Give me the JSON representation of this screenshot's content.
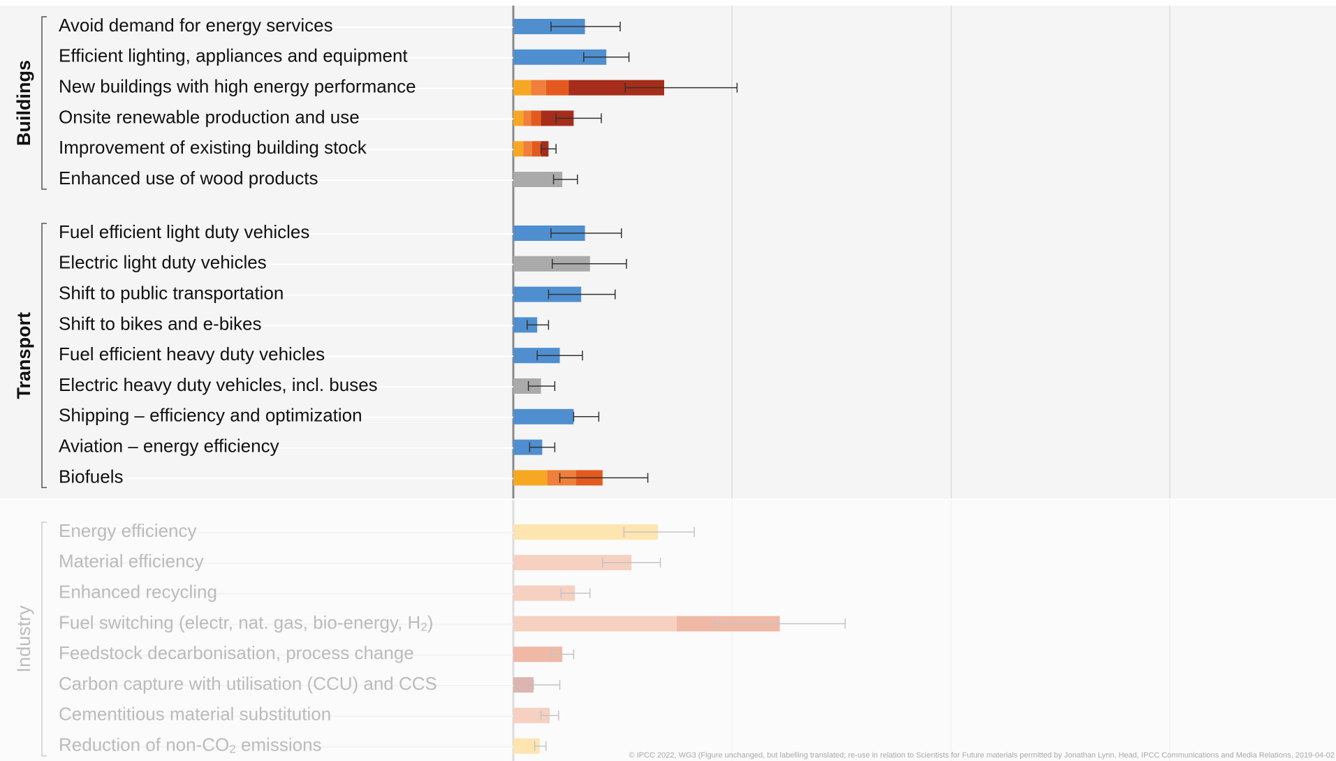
{
  "chart_data": {
    "type": "bar",
    "orientation": "horizontal",
    "stacked": true,
    "error_bars": true,
    "xlim": [
      0,
      7.5
    ],
    "colors": {
      "blue": "#4f8fcf",
      "gray": "#aaaaaa",
      "orange1": "#f7a823",
      "orange2": "#ef7f3a",
      "orange3": "#e45a1e",
      "red": "#a52d1a",
      "industry_yellow": "#fde5b0",
      "industry_pink": "#f6d0c0",
      "industry_pink2": "#efb9a6",
      "industry_mauve": "#dcb4b0",
      "frame": "#888888",
      "grid": "#dddddd"
    },
    "groups": [
      {
        "name": "Buildings",
        "faded": false,
        "items": [
          {
            "label": "Avoid demand for energy services",
            "segments": [
              {
                "value": 0.57,
                "color": "blue"
              }
            ],
            "err": [
              0.3,
              0.85
            ]
          },
          {
            "label": "Efficient lighting, appliances and equipment",
            "segments": [
              {
                "value": 0.74,
                "color": "blue"
              }
            ],
            "err": [
              0.56,
              0.92
            ]
          },
          {
            "label": "New buildings with high energy performance",
            "segments": [
              {
                "value": 0.14,
                "color": "orange1"
              },
              {
                "value": 0.12,
                "color": "orange2"
              },
              {
                "value": 0.18,
                "color": "orange3"
              },
              {
                "value": 0.76,
                "color": "red"
              }
            ],
            "err": [
              0.89,
              1.78
            ]
          },
          {
            "label": "Onsite renewable production and use",
            "segments": [
              {
                "value": 0.08,
                "color": "orange1"
              },
              {
                "value": 0.06,
                "color": "orange2"
              },
              {
                "value": 0.08,
                "color": "orange3"
              },
              {
                "value": 0.26,
                "color": "red"
              }
            ],
            "err": [
              0.34,
              0.7
            ]
          },
          {
            "label": "Improvement of existing building stock",
            "segments": [
              {
                "value": 0.08,
                "color": "orange1"
              },
              {
                "value": 0.07,
                "color": "orange2"
              },
              {
                "value": 0.07,
                "color": "orange3"
              },
              {
                "value": 0.06,
                "color": "red"
              }
            ],
            "err": [
              0.22,
              0.34
            ]
          },
          {
            "label": "Enhanced use of wood products",
            "segments": [
              {
                "value": 0.39,
                "color": "gray"
              }
            ],
            "err": [
              0.32,
              0.51
            ]
          }
        ]
      },
      {
        "name": "Transport",
        "faded": false,
        "items": [
          {
            "label": "Fuel efficient light duty vehicles",
            "segments": [
              {
                "value": 0.57,
                "color": "blue"
              }
            ],
            "err": [
              0.3,
              0.86
            ]
          },
          {
            "label": "Electric light duty vehicles",
            "segments": [
              {
                "value": 0.61,
                "color": "gray"
              }
            ],
            "err": [
              0.31,
              0.9
            ]
          },
          {
            "label": "Shift to public transportation",
            "segments": [
              {
                "value": 0.54,
                "color": "blue"
              }
            ],
            "err": [
              0.28,
              0.81
            ]
          },
          {
            "label": "Shift to bikes and e-bikes",
            "segments": [
              {
                "value": 0.19,
                "color": "blue"
              }
            ],
            "err": [
              0.11,
              0.28
            ]
          },
          {
            "label": "Fuel efficient heavy duty vehicles",
            "segments": [
              {
                "value": 0.37,
                "color": "blue"
              }
            ],
            "err": [
              0.19,
              0.55
            ]
          },
          {
            "label": "Electric heavy duty vehicles, incl. buses",
            "segments": [
              {
                "value": 0.22,
                "color": "gray"
              }
            ],
            "err": [
              0.12,
              0.33
            ]
          },
          {
            "label": "Shipping – efficiency and optimization",
            "segments": [
              {
                "value": 0.48,
                "color": "blue"
              }
            ],
            "err": [
              0.48,
              0.68
            ]
          },
          {
            "label": "Aviation – energy efficiency",
            "segments": [
              {
                "value": 0.23,
                "color": "blue"
              }
            ],
            "err": [
              0.13,
              0.33
            ]
          },
          {
            "label": "Biofuels",
            "segments": [
              {
                "value": 0.27,
                "color": "orange1"
              },
              {
                "value": 0.23,
                "color": "orange2"
              },
              {
                "value": 0.21,
                "color": "orange3"
              }
            ],
            "err": [
              0.37,
              1.07
            ]
          }
        ]
      },
      {
        "name": "Industry",
        "faded": true,
        "items": [
          {
            "label": "Energy efficiency",
            "segments": [
              {
                "value": 1.15,
                "color": "industry_yellow"
              }
            ],
            "err": [
              0.88,
              1.44
            ]
          },
          {
            "label": "Material efficiency",
            "segments": [
              {
                "value": 0.94,
                "color": "industry_pink"
              }
            ],
            "err": [
              0.71,
              1.17
            ]
          },
          {
            "label": "Enhanced recycling",
            "segments": [
              {
                "value": 0.49,
                "color": "industry_pink"
              }
            ],
            "err": [
              0.38,
              0.61
            ]
          },
          {
            "label": "Fuel switching (electr, nat. gas, bio-energy, H",
            "sub": "2",
            "after": ")",
            "segments": [
              {
                "value": 1.3,
                "color": "industry_pink"
              },
              {
                "value": 0.82,
                "color": "industry_pink2"
              }
            ],
            "err": [
              1.6,
              2.64
            ]
          },
          {
            "label": "Feedstock decarbonisation, process change",
            "segments": [
              {
                "value": 0.39,
                "color": "industry_pink2"
              }
            ],
            "err": [
              0.3,
              0.48
            ]
          },
          {
            "label": "Carbon capture with utilisation (CCU) and CCS",
            "segments": [
              {
                "value": 0.16,
                "color": "industry_mauve"
              }
            ],
            "err": [
              0.16,
              0.37
            ]
          },
          {
            "label": "Cementitious material substitution",
            "segments": [
              {
                "value": 0.29,
                "color": "industry_pink"
              }
            ],
            "err": [
              0.22,
              0.36
            ]
          },
          {
            "label": "Reduction of non-CO",
            "sub": "2",
            "after": " emissions",
            "segments": [
              {
                "value": 0.21,
                "color": "industry_yellow"
              }
            ],
            "err": [
              0.17,
              0.26
            ]
          }
        ]
      }
    ]
  },
  "credit": "© IPCC 2022, WG3 (Figure unchanged, but labelling translated; re-use in relation to Scientists for Future materials permitted by Jonathan Lynn, Head, IPCC Communications and Media Relations, 2019-04-02"
}
